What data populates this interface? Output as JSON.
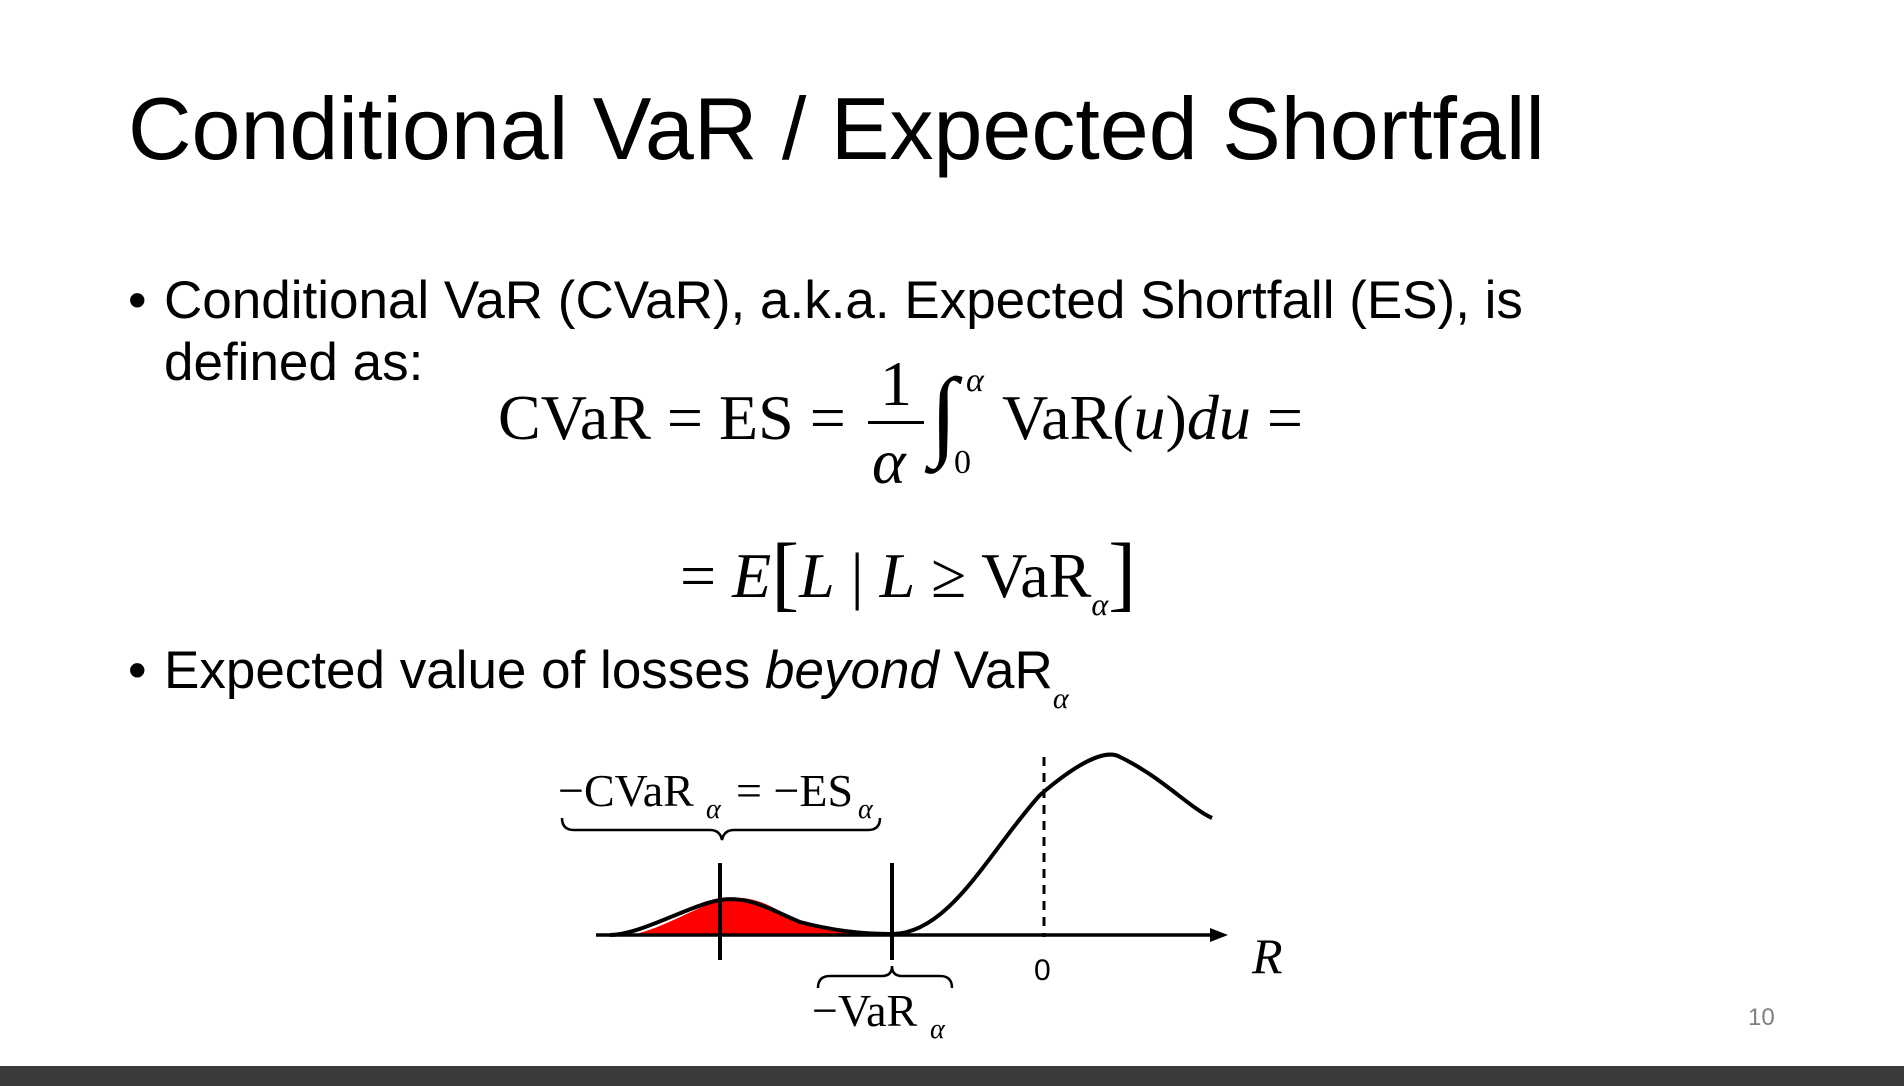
{
  "slide": {
    "title": "Conditional VaR / Expected Shortfall",
    "bullets": [
      {
        "symbol": "•",
        "line1": "Conditional VaR (CVaR), a.k.a. Expected Shortfall (ES), is",
        "line2": "defined as:"
      },
      {
        "symbol": "•",
        "prefix": "Expected value of losses ",
        "emphasis": "beyond",
        "suffix": " VaR",
        "subscript": "α"
      }
    ],
    "formula": {
      "lhs": "CVaR = ES =",
      "frac_num": "1",
      "frac_den": "α",
      "integral": "∫",
      "int_upper": "α",
      "int_lower": "0",
      "integrand": "VaR(",
      "var": "u",
      "close": ")",
      "d": "du",
      "eq": "=",
      "line2_eq": "=",
      "line2_E": "E",
      "line2_open": "[",
      "line2_L1": "L",
      "line2_bar": "|",
      "line2_L2": "L",
      "line2_geq": "≥",
      "line2_var": "VaR",
      "line2_sub": "α",
      "line2_close": "]"
    },
    "page_number": "10"
  },
  "diagram": {
    "cvar_label": "−CVaR",
    "cvar_sub": "α",
    "es_label": "= −ES",
    "es_sub": "α",
    "var_label": "−VaR",
    "var_sub": "α",
    "zero_label": "0",
    "axis_label": "R",
    "tail_fill_color": "#ff0000"
  }
}
